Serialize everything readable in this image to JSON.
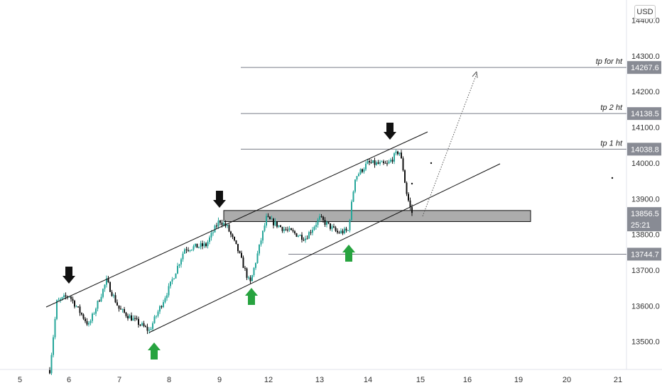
{
  "currency": "USD",
  "price_axis": {
    "ticks": [
      "13500.0",
      "13600.0",
      "13700.0",
      "13800.0",
      "13900.0",
      "14000.0",
      "14100.0",
      "14200.0",
      "14300.0",
      "14400.0"
    ],
    "levels": [
      {
        "label": "tp for ht",
        "value": "14267.6",
        "color": "#787b86"
      },
      {
        "label": "tp 2 ht",
        "value": "14138.5",
        "color": "#787b86"
      },
      {
        "label": "tp 1 ht",
        "value": "14038.8",
        "color": "#787b86"
      },
      {
        "label": "",
        "value": "13744.7",
        "color": "#787b86"
      }
    ],
    "current_price": "13856.5",
    "countdown": "25:21"
  },
  "time_axis": {
    "labels": [
      "5",
      "6",
      "7",
      "8",
      "9",
      "12",
      "13",
      "14",
      "15",
      "16",
      "19",
      "20",
      "21"
    ]
  },
  "colors": {
    "up": "#26a69a",
    "down": "#111111",
    "arrow_down": "#111111",
    "arrow_up": "#27a33f",
    "zone": "#9e9e9e"
  },
  "chart_data": {
    "type": "candlestick",
    "xlabel": "",
    "ylabel": "",
    "ylim": [
      13415,
      14450
    ],
    "close_series": [
      {
        "day": "5",
        "close": 13440
      },
      {
        "day": "6",
        "close": 13620
      },
      {
        "day": "7",
        "close": 13580
      },
      {
        "day": "8",
        "close": 13650
      },
      {
        "day": "9",
        "close": 13840
      },
      {
        "day": "12",
        "close": 13835
      },
      {
        "day": "13",
        "close": 13810
      },
      {
        "day": "14",
        "close": 14005
      },
      {
        "day": "15",
        "close": 13856.5
      }
    ],
    "horizontal_levels": [
      {
        "label": "tp for ht",
        "price": 14267.6
      },
      {
        "label": "tp 2 ht",
        "price": 14138.5
      },
      {
        "label": "tp 1 ht",
        "price": 14038.8
      },
      {
        "label": "",
        "price": 13744.7
      }
    ],
    "zone": {
      "price_top": 13867,
      "price_bottom": 13836
    },
    "channel": {
      "upper_from": 13620,
      "upper_to": 14090,
      "lower_from": 13519,
      "lower_to": 13995
    },
    "markers": {
      "down_arrows": [
        "6",
        "9",
        "14"
      ],
      "up_arrows": [
        "8",
        "12",
        "13"
      ]
    }
  }
}
